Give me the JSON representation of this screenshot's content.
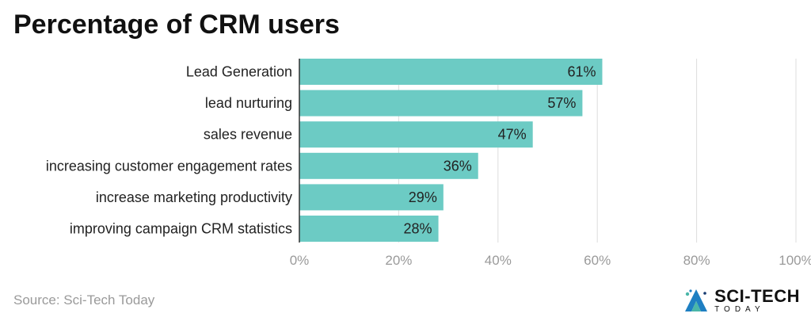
{
  "chart_data": {
    "type": "bar",
    "orientation": "horizontal",
    "title": "Percentage of CRM users",
    "categories": [
      "Lead Generation",
      "lead nurturing",
      "sales revenue",
      "increasing customer engagement rates",
      "increase marketing productivity",
      "improving campaign CRM statistics"
    ],
    "values": [
      61,
      57,
      47,
      36,
      29,
      28
    ],
    "value_labels": [
      "61%",
      "57%",
      "47%",
      "36%",
      "29%",
      "28%"
    ],
    "xlim": [
      0,
      100
    ],
    "x_ticks": [
      0,
      20,
      40,
      60,
      80,
      100
    ],
    "x_tick_labels": [
      "0%",
      "20%",
      "40%",
      "60%",
      "80%",
      "100%"
    ],
    "grid": "vertical",
    "legend": "none",
    "bar_color": "#6ccbc4"
  },
  "source": "Source: Sci-Tech Today",
  "logo": {
    "name": "SCI-TECH",
    "sub": "TODAY",
    "icon": "sci-tech-logo-icon",
    "colors": [
      "#1e7fc2",
      "#4ab6a8",
      "#163a70"
    ]
  }
}
